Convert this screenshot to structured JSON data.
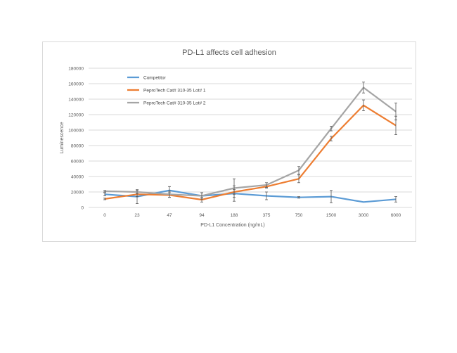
{
  "chart_data": {
    "type": "line",
    "title": "PD-L1 affects cell adhesion",
    "xlabel": "PD-L1 Concentration (ng/mL)",
    "ylabel": "Luminescence",
    "categories": [
      "0",
      "23",
      "47",
      "94",
      "188",
      "375",
      "750",
      "1500",
      "3000",
      "6000"
    ],
    "ylim": [
      0,
      180000
    ],
    "yticks": [
      0,
      20000,
      40000,
      60000,
      80000,
      100000,
      120000,
      140000,
      160000,
      180000
    ],
    "grid": true,
    "legend_placement": "top-left",
    "series": [
      {
        "name": "Competitor",
        "color": "#5b9bd5",
        "values": [
          17000,
          14000,
          22000,
          15000,
          18000,
          15000,
          13000,
          14000,
          7000,
          10500
        ],
        "errors": [
          2000,
          9000,
          5000,
          4000,
          10000,
          5000,
          1000,
          8000,
          0,
          3500
        ]
      },
      {
        "name": "PeproTech Cat# 310-35 Lot# 1",
        "color": "#ed7d31",
        "values": [
          11000,
          17000,
          16000,
          10000,
          20000,
          27000,
          37000,
          89000,
          132000,
          106000
        ],
        "errors": [
          1000,
          3000,
          3000,
          3000,
          3000,
          2000,
          5000,
          3000,
          7000,
          12000
        ]
      },
      {
        "name": "PeproTech Cat# 310-35 Lot# 2",
        "color": "#a5a5a5",
        "values": [
          21000,
          20000,
          17000,
          15000,
          25000,
          29000,
          48000,
          102000,
          155000,
          124000
        ],
        "errors": [
          1000,
          2000,
          4000,
          4000,
          12000,
          3000,
          5000,
          3000,
          7000,
          11000
        ]
      }
    ]
  }
}
